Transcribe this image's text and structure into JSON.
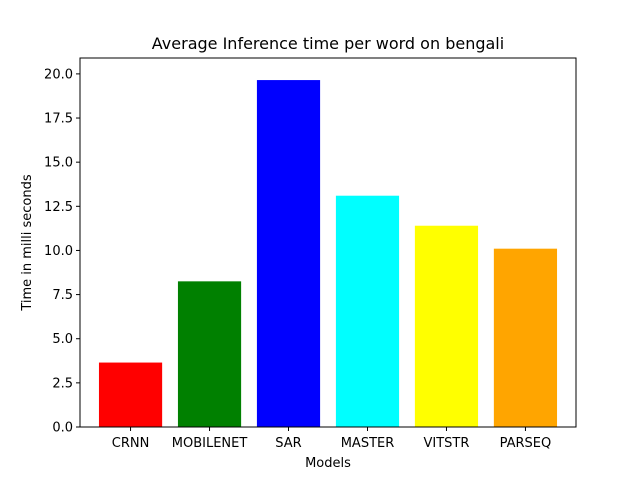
{
  "chart_data": {
    "type": "bar",
    "title": "Average Inference time per word on bengali",
    "xlabel": "Models",
    "ylabel": "Time in milli seconds",
    "categories": [
      "CRNN",
      "MOBILENET",
      "SAR",
      "MASTER",
      "VITSTR",
      "PARSEQ"
    ],
    "values": [
      3.65,
      8.25,
      19.65,
      13.1,
      11.4,
      10.1
    ],
    "colors": [
      "#ff0000",
      "#008000",
      "#0000ff",
      "#00ffff",
      "#ffff00",
      "#ffa500"
    ],
    "ylim": [
      0,
      20.9
    ],
    "yticks": [
      "0.0",
      "2.5",
      "5.0",
      "7.5",
      "10.0",
      "12.5",
      "15.0",
      "17.5",
      "20.0"
    ],
    "grid": false,
    "legend": "none"
  }
}
